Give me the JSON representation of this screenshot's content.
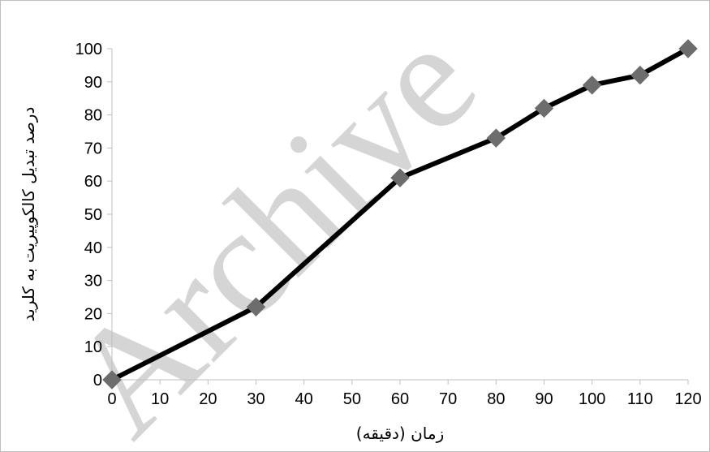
{
  "chart_data": {
    "type": "line",
    "x": [
      0,
      30,
      60,
      80,
      90,
      100,
      110,
      120
    ],
    "series": [
      {
        "values": [
          0,
          22,
          61,
          73,
          82,
          89,
          92,
          100
        ]
      }
    ],
    "xlabel": "زمان (دقیقه)",
    "ylabel": "درصد تبدیل کالکوپیریت به کلرید",
    "x_ticks": [
      "0",
      "10",
      "20",
      "30",
      "40",
      "50",
      "60",
      "70",
      "80",
      "90",
      "100",
      "110",
      "120"
    ],
    "y_ticks": [
      "0",
      "10",
      "20",
      "30",
      "40",
      "50",
      "60",
      "70",
      "80",
      "90",
      "100"
    ],
    "xlim": [
      0,
      120
    ],
    "ylim": [
      0,
      100
    ],
    "grid": false,
    "line_color": "#000000",
    "marker": "diamond",
    "marker_color": "#6d6d6d",
    "watermark": "Archive"
  }
}
